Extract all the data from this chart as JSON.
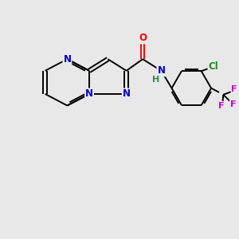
{
  "background_color": "#e8e8e8",
  "bond_color": "#000000",
  "atom_colors": {
    "N": "#0000cc",
    "O": "#ff0000",
    "Cl": "#228b22",
    "F": "#cc00cc",
    "H": "#2e8b57",
    "C": "#000000"
  },
  "figsize": [
    3.0,
    3.0
  ],
  "dpi": 100,
  "lw": 1.4,
  "fs": 8.5
}
